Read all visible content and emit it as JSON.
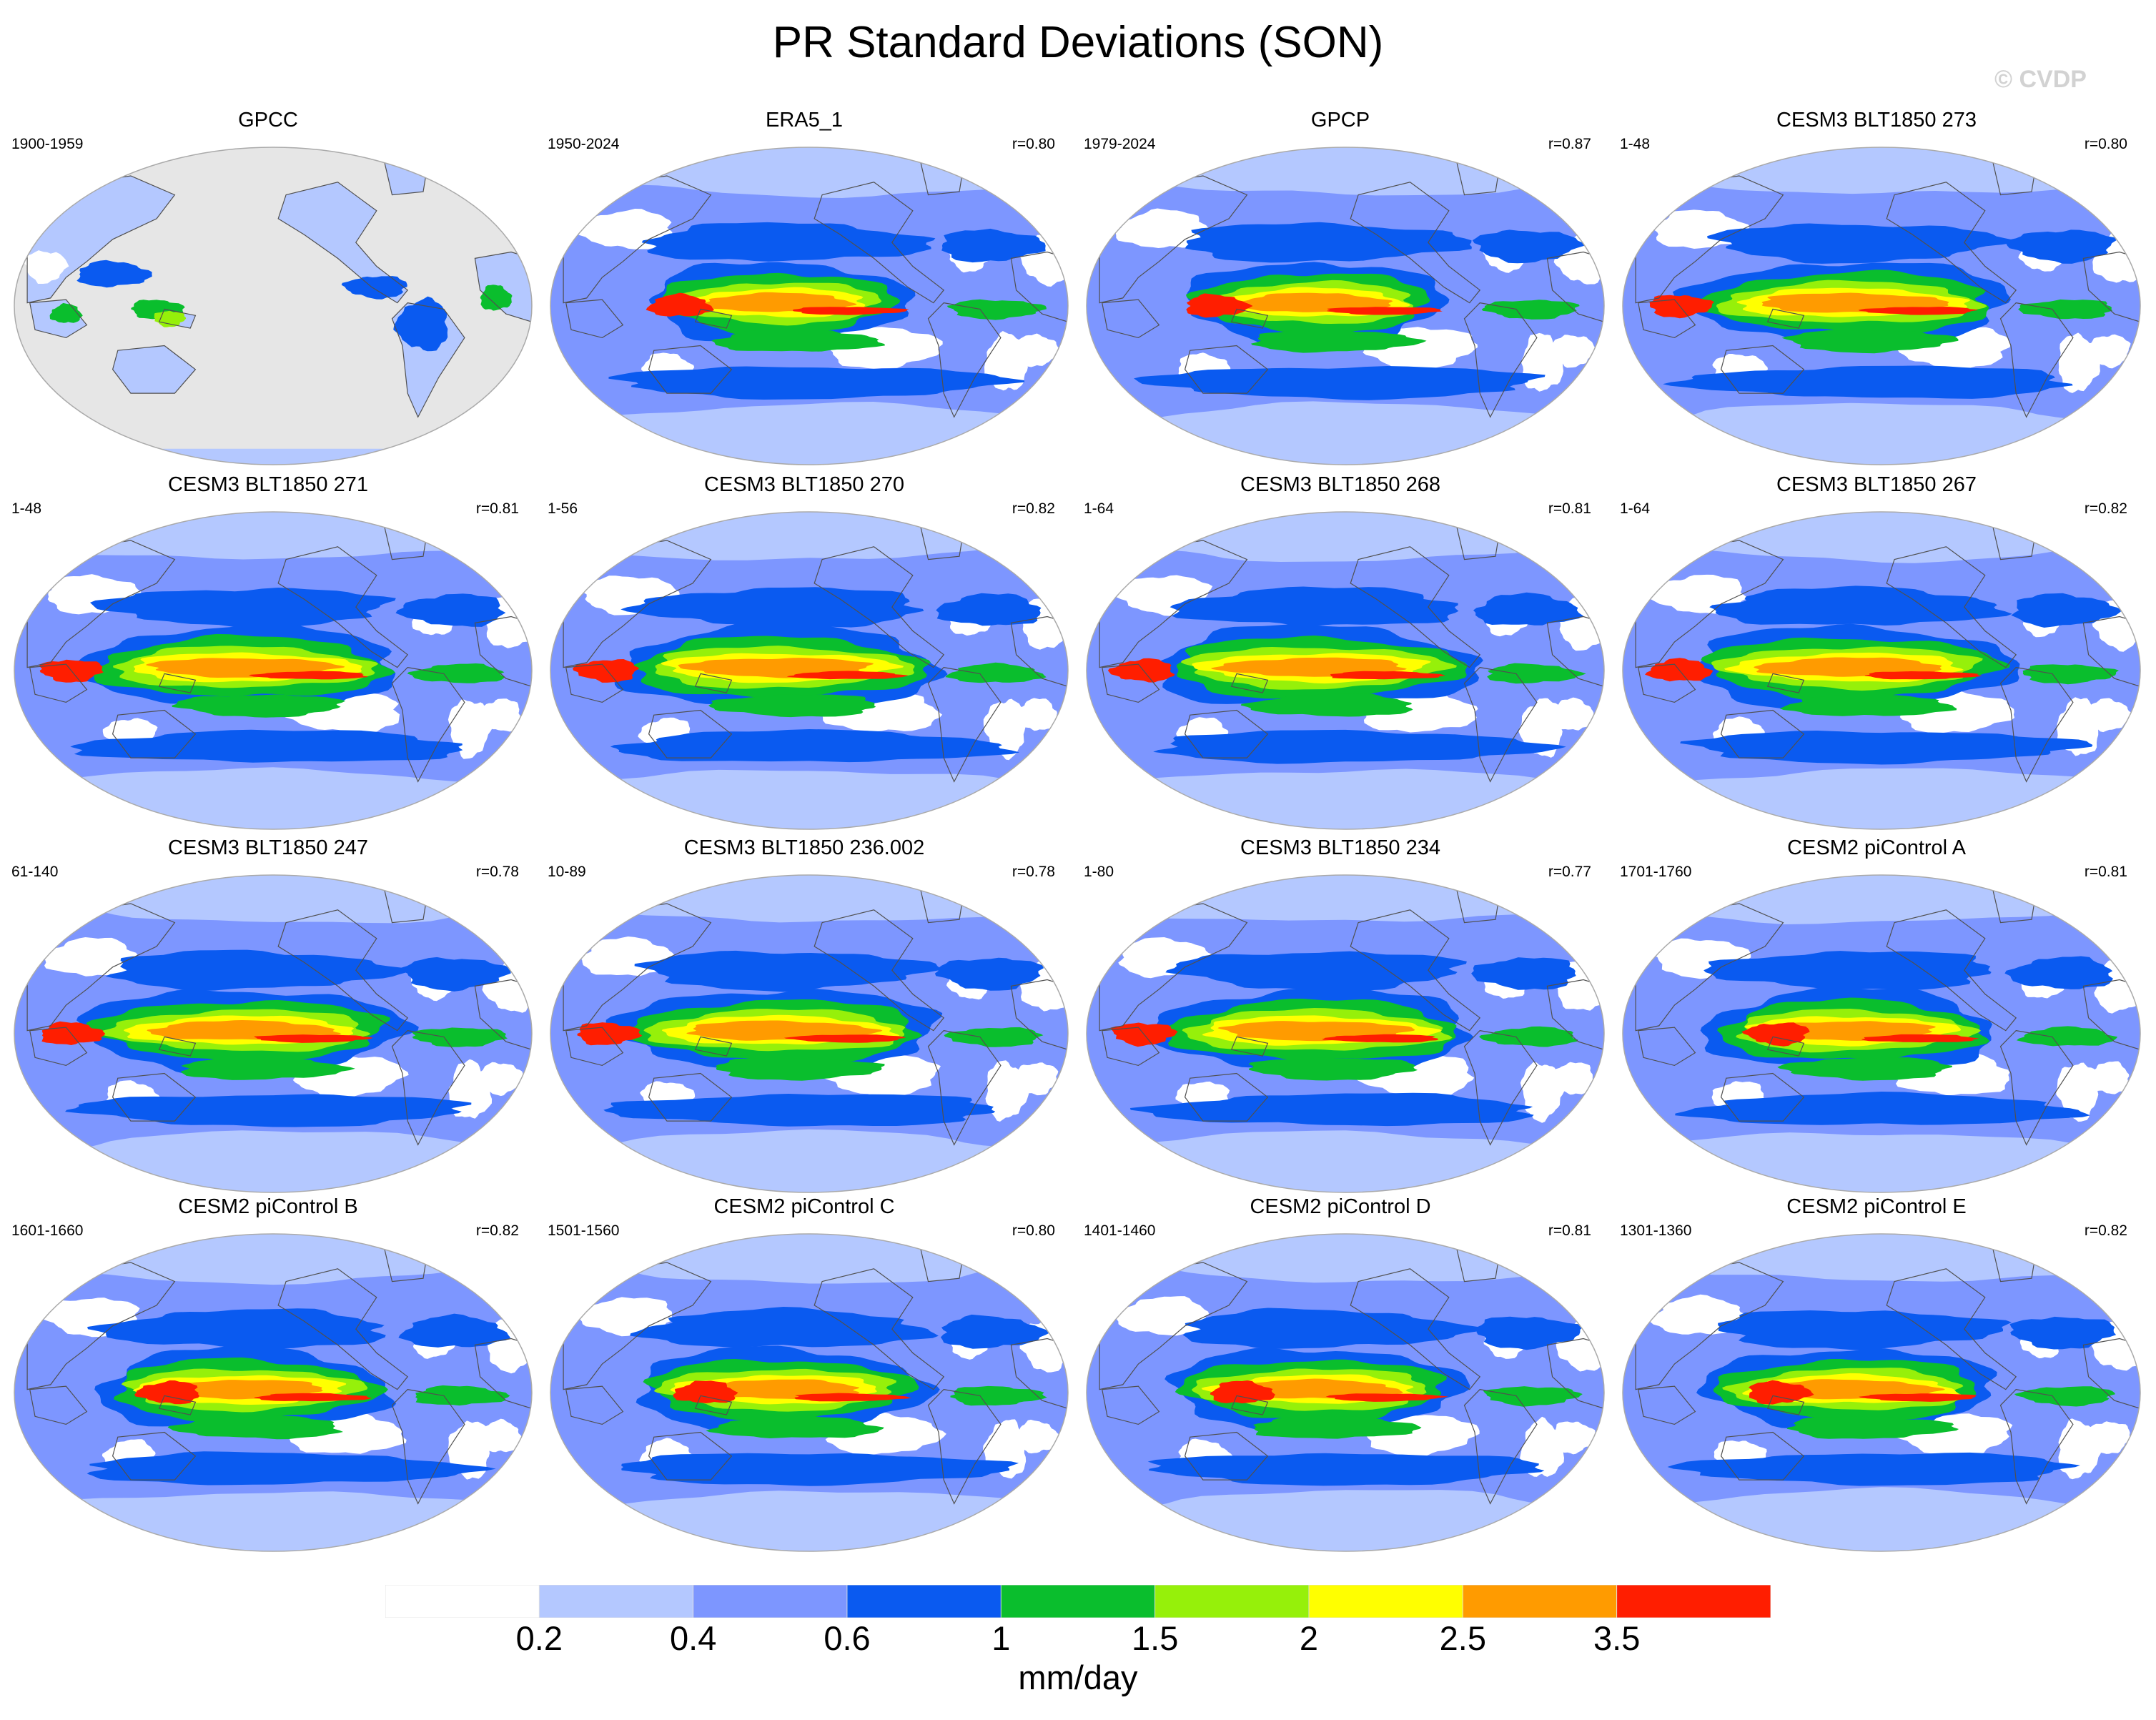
{
  "figure": {
    "title": "PR Standard Deviations (SON)",
    "watermark": "© CVDP"
  },
  "panels": [
    {
      "title": "GPCC",
      "years": "1900-1959",
      "r": "",
      "style": "land_only"
    },
    {
      "title": "ERA5_1",
      "years": "1950-2024",
      "r": "r=0.80",
      "style": "obs"
    },
    {
      "title": "GPCP",
      "years": "1979-2024",
      "r": "r=0.87",
      "style": "obs"
    },
    {
      "title": "CESM3 BLT1850 273",
      "years": "1-48",
      "r": "r=0.80",
      "style": "model"
    },
    {
      "title": "CESM3 BLT1850 271",
      "years": "1-48",
      "r": "r=0.81",
      "style": "model"
    },
    {
      "title": "CESM3 BLT1850 270",
      "years": "1-56",
      "r": "r=0.82",
      "style": "model"
    },
    {
      "title": "CESM3 BLT1850 268",
      "years": "1-64",
      "r": "r=0.81",
      "style": "model"
    },
    {
      "title": "CESM3 BLT1850 267",
      "years": "1-64",
      "r": "r=0.82",
      "style": "model"
    },
    {
      "title": "CESM3 BLT1850 247",
      "years": "61-140",
      "r": "r=0.78",
      "style": "model"
    },
    {
      "title": "CESM3 BLT1850 236.002",
      "years": "10-89",
      "r": "r=0.78",
      "style": "model"
    },
    {
      "title": "CESM3 BLT1850 234",
      "years": "1-80",
      "r": "r=0.77",
      "style": "model"
    },
    {
      "title": "CESM2 piControl A",
      "years": "1701-1760",
      "r": "r=0.81",
      "style": "cesm2"
    },
    {
      "title": "CESM2 piControl B",
      "years": "1601-1660",
      "r": "r=0.82",
      "style": "cesm2"
    },
    {
      "title": "CESM2 piControl C",
      "years": "1501-1560",
      "r": "r=0.80",
      "style": "cesm2"
    },
    {
      "title": "CESM2 piControl D",
      "years": "1401-1460",
      "r": "r=0.81",
      "style": "cesm2"
    },
    {
      "title": "CESM2 piControl E",
      "years": "1301-1360",
      "r": "r=0.82",
      "style": "cesm2"
    }
  ],
  "colorbar": {
    "tick_labels": [
      "0.2",
      "0.4",
      "0.6",
      "1",
      "1.5",
      "2",
      "2.5",
      "3.5"
    ],
    "colors": [
      "#ffffff",
      "#b4c8ff",
      "#7d96ff",
      "#0a5af0",
      "#0abe2d",
      "#96f00a",
      "#ffff00",
      "#ff9b00",
      "#ff1e00"
    ],
    "units": "mm/day"
  },
  "colors": {
    "missing": "#e6e6e6",
    "coastline": "#505050",
    "map_border": "#aaaaaa"
  }
}
